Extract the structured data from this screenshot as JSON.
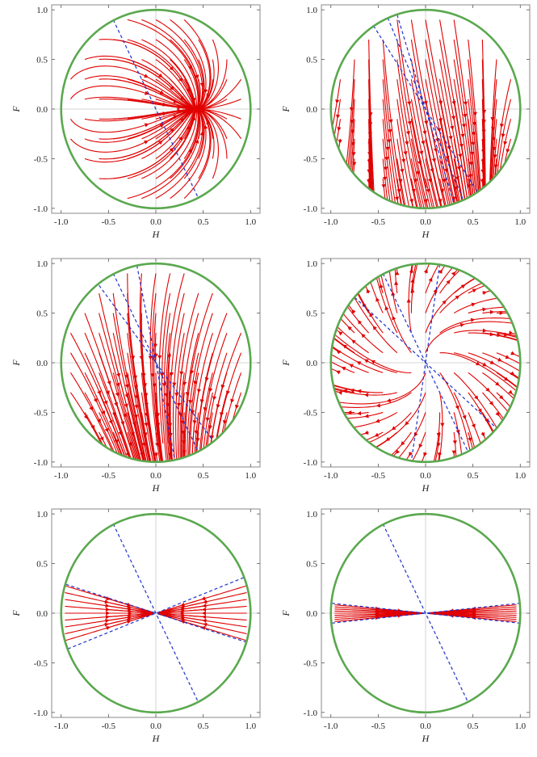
{
  "figure": {
    "colors": {
      "circle": "#5aa84e",
      "streamline": "#e00000",
      "separatrix": "#1f33cc",
      "frame": "#888888",
      "center_axes": "#c8c8c8"
    }
  },
  "chart_data": [
    {
      "panel": "top-left",
      "type": "phase-portrait",
      "xlabel": "H",
      "ylabel": "F",
      "xlim": [
        -1.1,
        1.1
      ],
      "ylim": [
        -1.05,
        1.05
      ],
      "xticks": [
        -1.0,
        -0.5,
        0.0,
        0.5,
        1.0
      ],
      "yticks": [
        -1.0,
        -0.5,
        0.0,
        0.5,
        1.0
      ],
      "xtick_labels": [
        "-1.0",
        "-0.5",
        "0.0",
        "0.5",
        "1.0"
      ],
      "ytick_labels": [
        "-1.0",
        "-0.5",
        "0.0",
        "0.5",
        "1.0"
      ],
      "boundary_circle_radius": 1.0,
      "dashed_lines": [
        {
          "from": [
            -0.45,
            0.9
          ],
          "to": [
            0.45,
            -0.9
          ]
        }
      ],
      "streamlines": "dense flow across the disc",
      "grid": false
    },
    {
      "panel": "top-right",
      "type": "phase-portrait",
      "xlabel": "H",
      "ylabel": "F",
      "xlim": [
        -1.1,
        1.1
      ],
      "ylim": [
        -1.05,
        1.05
      ],
      "xticks": [
        -1.0,
        -0.5,
        0.0,
        0.5,
        1.0
      ],
      "yticks": [
        -1.0,
        -0.5,
        0.0,
        0.5,
        1.0
      ],
      "xtick_labels": [
        "-1.0",
        "-0.5",
        "0.0",
        "0.5",
        "1.0"
      ],
      "ytick_labels": [
        "-1.0",
        "-0.5",
        "0.0",
        "0.5",
        "1.0"
      ],
      "boundary_circle_radius": 1.0,
      "dashed_lines": [
        {
          "from": [
            -0.55,
            0.84
          ],
          "to": [
            0.55,
            -0.84
          ]
        },
        {
          "from": [
            -0.4,
            0.92
          ],
          "to": [
            0.4,
            -0.92
          ]
        },
        {
          "from": [
            -0.3,
            0.95
          ],
          "to": [
            0.3,
            -0.95
          ]
        }
      ],
      "grid": false
    },
    {
      "panel": "middle-left",
      "type": "phase-portrait",
      "xlabel": "H",
      "ylabel": "F",
      "xlim": [
        -1.1,
        1.1
      ],
      "ylim": [
        -1.05,
        1.05
      ],
      "xticks": [
        -1.0,
        -0.5,
        0.0,
        0.5,
        1.0
      ],
      "yticks": [
        -1.0,
        -0.5,
        0.0,
        0.5,
        1.0
      ],
      "xtick_labels": [
        "-1.0",
        "-0.5",
        "0.0",
        "0.5",
        "1.0"
      ],
      "ytick_labels": [
        "-1.0",
        "-0.5",
        "0.0",
        "0.5",
        "1.0"
      ],
      "boundary_circle_radius": 1.0,
      "dashed_lines": [
        {
          "from": [
            -0.6,
            0.78
          ],
          "to": [
            0.6,
            -0.78
          ]
        },
        {
          "from": [
            -0.45,
            0.9
          ],
          "to": [
            0.45,
            -0.9
          ]
        },
        {
          "from": [
            -0.2,
            0.98
          ],
          "to": [
            0.2,
            -0.98
          ]
        }
      ],
      "grid": false
    },
    {
      "panel": "middle-right",
      "type": "phase-portrait",
      "xlabel": "H",
      "ylabel": "F",
      "xlim": [
        -1.1,
        1.1
      ],
      "ylim": [
        -1.05,
        1.05
      ],
      "xticks": [
        -1.0,
        -0.5,
        0.0,
        0.5,
        1.0
      ],
      "yticks": [
        -1.0,
        -0.5,
        0.0,
        0.5,
        1.0
      ],
      "xtick_labels": [
        "-1.0",
        "-0.5",
        "0.0",
        "0.5",
        "1.0"
      ],
      "ytick_labels": [
        "-1.0",
        "-0.5",
        "0.0",
        "0.5",
        "1.0"
      ],
      "boundary_circle_radius": 1.0,
      "dashed_lines": [
        {
          "from": [
            -0.75,
            0.66
          ],
          "to": [
            0.75,
            -0.66
          ]
        },
        {
          "from": [
            -0.45,
            0.9
          ],
          "to": [
            0.45,
            -0.9
          ]
        },
        {
          "from": [
            0.15,
            0.99
          ],
          "to": [
            -0.15,
            -0.99
          ]
        }
      ],
      "grid": false
    },
    {
      "panel": "bottom-left",
      "type": "phase-portrait",
      "xlabel": "H",
      "ylabel": "F",
      "xlim": [
        -1.1,
        1.1
      ],
      "ylim": [
        -1.05,
        1.05
      ],
      "xticks": [
        -1.0,
        -0.5,
        0.0,
        0.5,
        1.0
      ],
      "yticks": [
        -1.0,
        -0.5,
        0.0,
        0.5,
        1.0
      ],
      "xtick_labels": [
        "-1.0",
        "-0.5",
        "0.0",
        "0.5",
        "1.0"
      ],
      "ytick_labels": [
        "-1.0",
        "-0.5",
        "0.0",
        "0.5",
        "1.0"
      ],
      "boundary_circle_radius": 1.0,
      "dashed_lines": [
        {
          "from": [
            -0.45,
            0.9
          ],
          "to": [
            0.45,
            -0.9
          ]
        },
        {
          "from": [
            -0.95,
            0.29
          ],
          "to": [
            0.95,
            -0.29
          ]
        },
        {
          "from": [
            -0.93,
            -0.36
          ],
          "to": [
            0.93,
            0.36
          ]
        }
      ],
      "grid": false
    },
    {
      "panel": "bottom-right",
      "type": "phase-portrait",
      "xlabel": "H",
      "ylabel": "F",
      "xlim": [
        -1.1,
        1.1
      ],
      "ylim": [
        -1.05,
        1.05
      ],
      "xticks": [
        -1.0,
        -0.5,
        0.0,
        0.5,
        1.0
      ],
      "yticks": [
        -1.0,
        -0.5,
        0.0,
        0.5,
        1.0
      ],
      "xtick_labels": [
        "-1.0",
        "-0.5",
        "0.0",
        "0.5",
        "1.0"
      ],
      "ytick_labels": [
        "-1.0",
        "-0.5",
        "0.0",
        "0.5",
        "1.0"
      ],
      "boundary_circle_radius": 1.0,
      "dashed_lines": [
        {
          "from": [
            -0.45,
            0.9
          ],
          "to": [
            0.45,
            -0.9
          ]
        },
        {
          "from": [
            -0.99,
            0.1
          ],
          "to": [
            0.99,
            -0.1
          ]
        },
        {
          "from": [
            -0.99,
            -0.1
          ],
          "to": [
            0.99,
            0.1
          ]
        }
      ],
      "grid": false
    }
  ]
}
